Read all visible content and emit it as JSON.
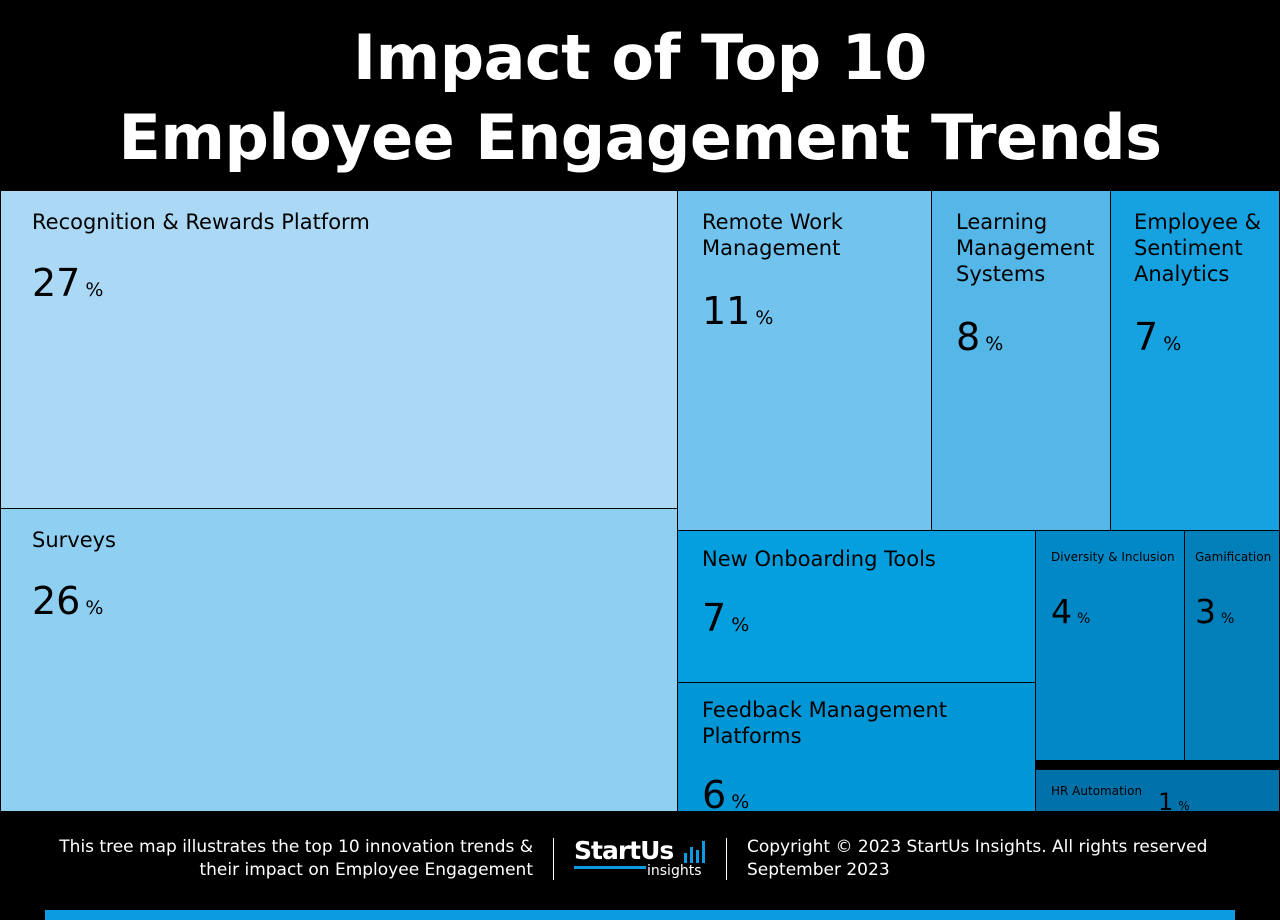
{
  "title": {
    "line1": "Impact of Top 10",
    "line2": "Employee Engagement Trends"
  },
  "chart_data": {
    "type": "treemap",
    "unit": "%",
    "items": [
      {
        "label": "Recognition & Rewards Platform",
        "value": 27,
        "color": "#aad8f5"
      },
      {
        "label": "Surveys",
        "value": 26,
        "color": "#8fcff2"
      },
      {
        "label": "Remote Work Management",
        "value": 11,
        "color": "#72c3ee"
      },
      {
        "label": "Learning Management Systems",
        "value": 8,
        "color": "#55b6e8"
      },
      {
        "label": "Employee & Sentiment Analytics",
        "value": 7,
        "color": "#16a2e0"
      },
      {
        "label": "New Onboarding Tools",
        "value": 7,
        "color": "#039fde"
      },
      {
        "label": "Feedback Management Platforms",
        "value": 6,
        "color": "#0197d6"
      },
      {
        "label": "Diversity & Inclusion",
        "value": 4,
        "color": "#0089c6"
      },
      {
        "label": "Gamification",
        "value": 3,
        "color": "#007fb9"
      },
      {
        "label": "HR Automation",
        "value": 1,
        "color": "#0072a9"
      }
    ]
  },
  "footer": {
    "description_line1": "This tree map illustrates the top 10 innovation trends &",
    "description_line2": "their impact on Employee Engagement",
    "logo_text": "StartUs",
    "logo_subtext": "insights",
    "copyright": "Copyright © 2023 StartUs Insights. All rights reserved",
    "date": "September 2023"
  },
  "colors": {
    "background": "#000000",
    "accent_bar": "#0a9be0",
    "text_light": "#ffffff"
  }
}
